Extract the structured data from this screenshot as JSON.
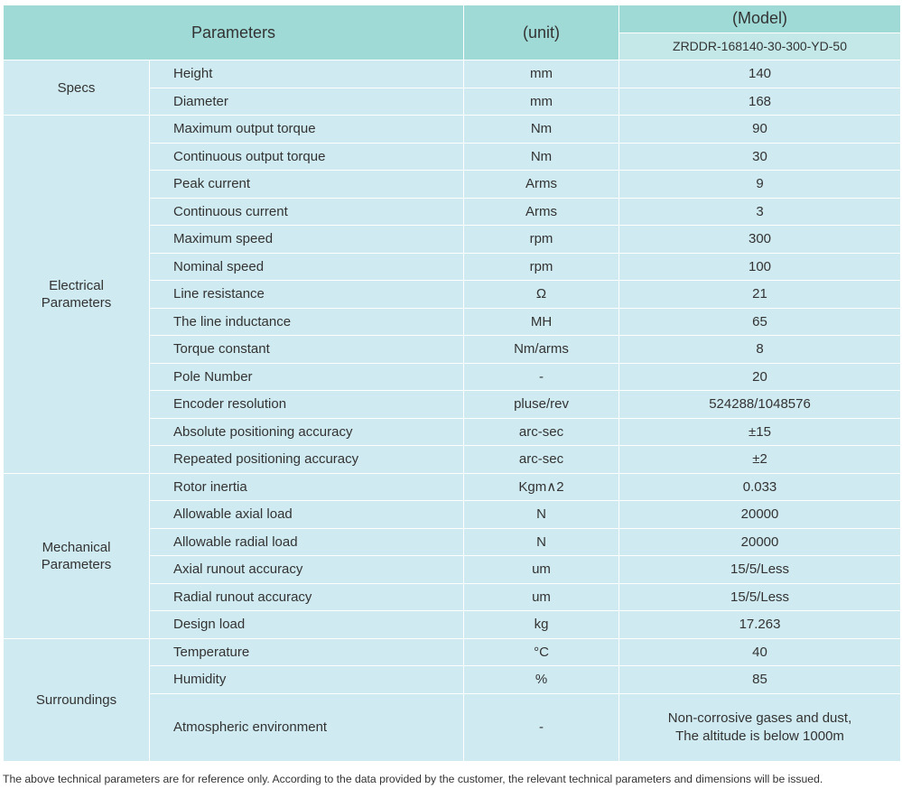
{
  "header": {
    "parameters": "Parameters",
    "unit": "(unit)",
    "model": "(Model)",
    "model_number": "ZRDDR-168140-30-300-YD-50"
  },
  "groups": [
    {
      "name": "Specs",
      "rows": [
        {
          "parameter": "Height",
          "unit": "mm",
          "value": "140"
        },
        {
          "parameter": "Diameter",
          "unit": "mm",
          "value": "168"
        }
      ]
    },
    {
      "name": "Electrical Parameters",
      "rows": [
        {
          "parameter": "Maximum output torque",
          "unit": "Nm",
          "value": "90"
        },
        {
          "parameter": "Continuous output torque",
          "unit": "Nm",
          "value": "30"
        },
        {
          "parameter": "Peak current",
          "unit": "Arms",
          "value": "9"
        },
        {
          "parameter": "Continuous current",
          "unit": "Arms",
          "value": "3"
        },
        {
          "parameter": "Maximum speed",
          "unit": "rpm",
          "value": "300"
        },
        {
          "parameter": "Nominal speed",
          "unit": "rpm",
          "value": "100"
        },
        {
          "parameter": "Line resistance",
          "unit": "Ω",
          "value": "21"
        },
        {
          "parameter": "The line inductance",
          "unit": "MH",
          "value": "65"
        },
        {
          "parameter": "Torque constant",
          "unit": "Nm/arms",
          "value": "8"
        },
        {
          "parameter": "Pole Number",
          "unit": "-",
          "value": "20"
        },
        {
          "parameter": "Encoder resolution",
          "unit": "pluse/rev",
          "value": "524288/1048576"
        },
        {
          "parameter": "Absolute positioning accuracy",
          "unit": "arc-sec",
          "value": "±15"
        },
        {
          "parameter": "Repeated positioning accuracy",
          "unit": "arc-sec",
          "value": "±2"
        }
      ]
    },
    {
      "name": "Mechanical Parameters",
      "rows": [
        {
          "parameter": "Rotor inertia",
          "unit": "Kgm∧2",
          "value": "0.033"
        },
        {
          "parameter": "Allowable axial load",
          "unit": "N",
          "value": "20000"
        },
        {
          "parameter": "Allowable radial load",
          "unit": "N",
          "value": "20000"
        },
        {
          "parameter": "Axial runout accuracy",
          "unit": "um",
          "value": "15/5/Less"
        },
        {
          "parameter": "Radial runout accuracy",
          "unit": "um",
          "value": "15/5/Less"
        },
        {
          "parameter": "Design load",
          "unit": "kg",
          "value": "17.263"
        }
      ]
    },
    {
      "name": "Surroundings",
      "rows": [
        {
          "parameter": "Temperature",
          "unit": "°C",
          "value": "40"
        },
        {
          "parameter": "Humidity",
          "unit": "%",
          "value": "85"
        },
        {
          "parameter": "Atmospheric environment",
          "unit": "-",
          "value": [
            "Non-corrosive gases and dust,",
            "The altitude is below 1000m"
          ]
        }
      ]
    }
  ],
  "footnote": "The above technical parameters are for reference only. According to the data provided by the customer, the relevant technical parameters and dimensions will be issued."
}
